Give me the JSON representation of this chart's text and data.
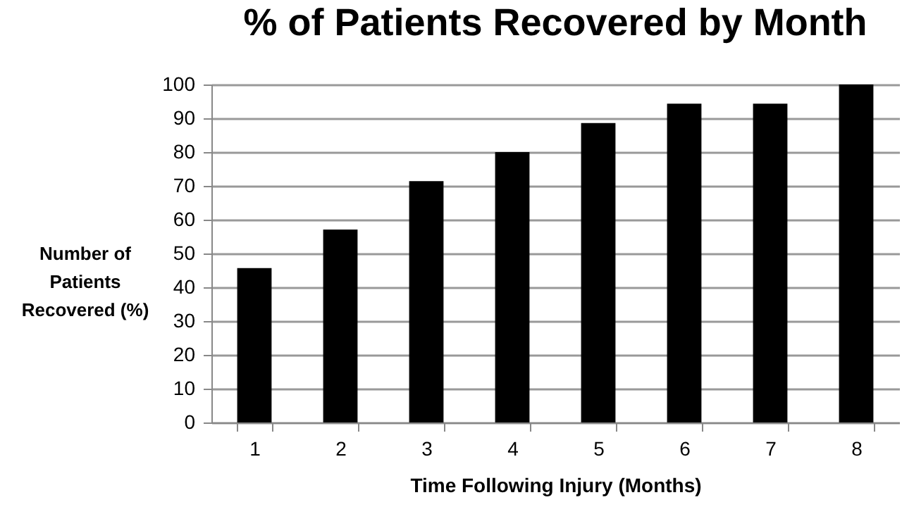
{
  "chart_data": {
    "type": "bar",
    "title": "% of Patients Recovered by Month",
    "xlabel": "Time Following Injury (Months)",
    "ylabel": "Number of\nPatients\nRecovered (%)",
    "categories": [
      "1",
      "2",
      "3",
      "4",
      "5",
      "6",
      "7",
      "8"
    ],
    "values": [
      45.7,
      57.1,
      71.4,
      80,
      88.6,
      94.3,
      94.3,
      100
    ],
    "color": "#000000",
    "ylim": [
      0,
      100
    ],
    "yticks": [
      0,
      10,
      20,
      30,
      40,
      50,
      60,
      70,
      80,
      90,
      100
    ],
    "grid": "y"
  }
}
